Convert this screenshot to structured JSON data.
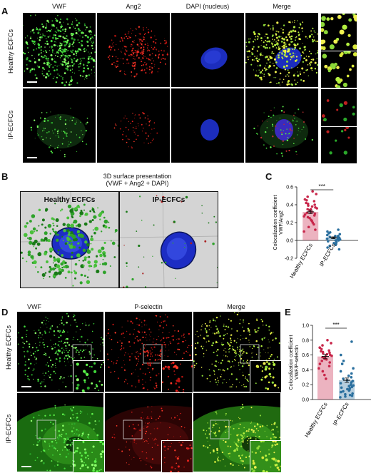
{
  "panel_letters": {
    "a": "A",
    "b": "B",
    "c": "C",
    "d": "D",
    "e": "E"
  },
  "panelA": {
    "columns": [
      "VWF",
      "Ang2",
      "DAPI (nucleus)",
      "Merge"
    ],
    "rows": [
      "Healthy ECFCs",
      "IP-ECFCs"
    ]
  },
  "panelB": {
    "title_line1": "3D surface presentation",
    "title_line2": "(VWF + Ang2 + DAPI)",
    "left_label": "Healthy ECFCs",
    "right_label": "IP-ECFCs"
  },
  "panelD": {
    "columns": [
      "VWF",
      "P-selectin",
      "Merge"
    ],
    "rows": [
      "Healthy ECFCs",
      "IP-ECFCs"
    ]
  },
  "chart_data": [
    {
      "type": "bar",
      "panel": "C",
      "ylabel_line1": "Colocalization coefficient",
      "ylabel_line2": "VWF/Ang2",
      "categories": [
        "Healthy ECFCs",
        "IP-ECFCs"
      ],
      "values": [
        0.32,
        0.03
      ],
      "errors": [
        0.02,
        0.01
      ],
      "ylim": [
        -0.2,
        0.6
      ],
      "yticks": [
        "-0.2",
        "0.0",
        "0.2",
        "0.4",
        "0.6"
      ],
      "significance": "***",
      "colors": [
        "#c8264a",
        "#2a6f9e"
      ],
      "points": [
        [
          0.55,
          0.52,
          0.49,
          0.46,
          0.45,
          0.44,
          0.42,
          0.41,
          0.4,
          0.39,
          0.38,
          0.37,
          0.36,
          0.35,
          0.35,
          0.34,
          0.33,
          0.32,
          0.31,
          0.3,
          0.29,
          0.28,
          0.27,
          0.26,
          0.25,
          0.23,
          0.22,
          0.2,
          0.18,
          0.15,
          0.12,
          0.1
        ],
        [
          0.12,
          0.1,
          0.09,
          0.08,
          0.07,
          0.06,
          0.05,
          0.05,
          0.04,
          0.04,
          0.03,
          0.03,
          0.02,
          0.02,
          0.01,
          0.01,
          0.0,
          0.0,
          -0.01,
          -0.02,
          -0.03,
          -0.04,
          -0.05,
          -0.06,
          -0.08,
          -0.1
        ]
      ]
    },
    {
      "type": "bar",
      "panel": "E",
      "ylabel_line1": "Colocalization coefficient",
      "ylabel_line2": "VWF/P-selectin",
      "categories": [
        "Healthy ECFCs",
        "IP-ECFCs"
      ],
      "values": [
        0.58,
        0.26
      ],
      "errors": [
        0.03,
        0.03
      ],
      "ylim": [
        0.0,
        1.0
      ],
      "yticks": [
        "0.0",
        "0.2",
        "0.4",
        "0.6",
        "0.8",
        "1.0"
      ],
      "significance": "***",
      "colors": [
        "#c8264a",
        "#2a6f9e"
      ],
      "points": [
        [
          0.8,
          0.76,
          0.73,
          0.7,
          0.68,
          0.66,
          0.65,
          0.64,
          0.63,
          0.62,
          0.61,
          0.6,
          0.59,
          0.58,
          0.57,
          0.56,
          0.55,
          0.54,
          0.52,
          0.5,
          0.48,
          0.45,
          0.42,
          0.38,
          0.33,
          0.28
        ],
        [
          0.78,
          0.6,
          0.52,
          0.48,
          0.42,
          0.38,
          0.35,
          0.32,
          0.3,
          0.28,
          0.26,
          0.25,
          0.23,
          0.22,
          0.2,
          0.19,
          0.18,
          0.17,
          0.16,
          0.15,
          0.14,
          0.13,
          0.12,
          0.11,
          0.1,
          0.08,
          0.07,
          0.06,
          0.05,
          0.04,
          0.03
        ]
      ]
    }
  ]
}
